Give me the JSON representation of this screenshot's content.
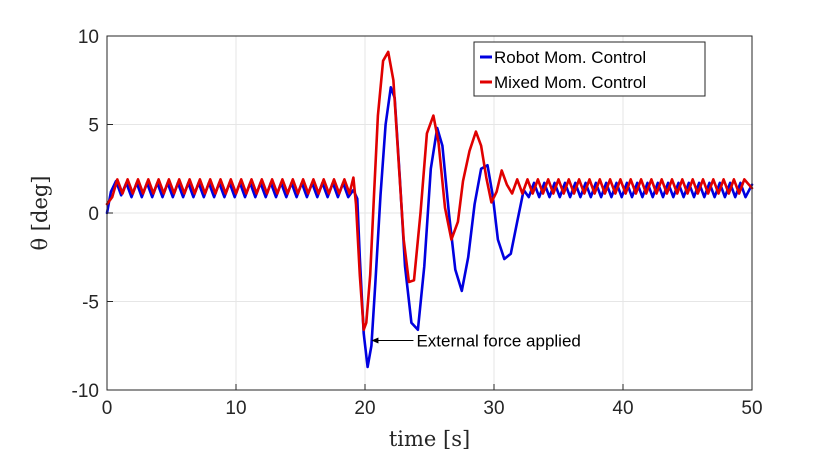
{
  "chart_data": {
    "type": "line",
    "xlabel": "time [s]",
    "ylabel": "θ [deg]",
    "xlim": [
      0,
      50
    ],
    "ylim": [
      -10,
      10
    ],
    "xticks": [
      "0",
      "10",
      "20",
      "30",
      "40",
      "50"
    ],
    "yticks": [
      "-10",
      "-5",
      "0",
      "5",
      "10"
    ],
    "grid": true,
    "legend_position": "top-right",
    "series": [
      {
        "name": "Robot Mom. Control",
        "color": "#0000e0",
        "x": [
          0,
          0.3,
          0.7,
          1.1,
          1.5,
          1.9,
          2.3,
          2.7,
          3.1,
          3.5,
          3.9,
          4.3,
          4.7,
          5.1,
          5.5,
          5.9,
          6.3,
          6.7,
          7.1,
          7.5,
          7.9,
          8.3,
          8.7,
          9.1,
          9.5,
          9.9,
          10.3,
          10.7,
          11.1,
          11.5,
          11.9,
          12.3,
          12.7,
          13.1,
          13.5,
          13.9,
          14.3,
          14.7,
          15.1,
          15.5,
          15.9,
          16.3,
          16.7,
          17.1,
          17.5,
          17.9,
          18.3,
          18.7,
          19.1,
          19.4,
          19.6,
          19.9,
          20.2,
          20.5,
          20.8,
          21.2,
          21.6,
          22.0,
          22.3,
          22.7,
          23.1,
          23.6,
          24.1,
          24.6,
          25.1,
          25.6,
          26.0,
          26.5,
          27.0,
          27.5,
          28.0,
          28.5,
          29.0,
          29.5,
          29.9,
          30.3,
          30.8,
          31.3,
          31.8,
          32.3,
          32.7,
          33.1,
          33.5,
          33.9,
          34.3,
          34.7,
          35.1,
          35.5,
          35.9,
          36.3,
          36.7,
          37.1,
          37.5,
          37.9,
          38.3,
          38.7,
          39.1,
          39.5,
          39.9,
          40.3,
          40.7,
          41.1,
          41.5,
          41.9,
          42.3,
          42.7,
          43.1,
          43.5,
          43.9,
          44.3,
          44.7,
          45.1,
          45.5,
          45.9,
          46.3,
          46.7,
          47.1,
          47.5,
          47.9,
          48.3,
          48.7,
          49.1,
          49.5,
          50.0
        ],
        "y": [
          0,
          1.2,
          1.8,
          1.0,
          1.7,
          0.9,
          1.7,
          0.9,
          1.7,
          0.9,
          1.7,
          0.9,
          1.7,
          0.9,
          1.7,
          0.9,
          1.7,
          0.9,
          1.7,
          0.9,
          1.7,
          0.9,
          1.7,
          0.9,
          1.7,
          0.9,
          1.7,
          0.9,
          1.7,
          0.9,
          1.7,
          0.9,
          1.7,
          0.9,
          1.7,
          0.9,
          1.7,
          0.9,
          1.7,
          0.9,
          1.7,
          0.9,
          1.7,
          0.9,
          1.7,
          0.9,
          1.7,
          0.9,
          1.3,
          0.8,
          -2.5,
          -6.8,
          -8.7,
          -7.5,
          -4.0,
          1.0,
          5.0,
          7.1,
          6.5,
          2.0,
          -3.0,
          -6.2,
          -6.6,
          -3.0,
          2.5,
          4.8,
          3.8,
          0.0,
          -3.2,
          -4.4,
          -2.5,
          0.5,
          2.5,
          2.7,
          1.0,
          -1.5,
          -2.6,
          -2.3,
          -0.5,
          1.3,
          0.9,
          1.7,
          0.9,
          1.7,
          0.9,
          1.7,
          0.9,
          1.7,
          0.9,
          1.7,
          0.9,
          1.7,
          0.9,
          1.7,
          0.9,
          1.7,
          0.9,
          1.7,
          0.9,
          1.7,
          0.9,
          1.7,
          0.9,
          1.7,
          0.9,
          1.7,
          0.9,
          1.7,
          0.9,
          1.7,
          0.9,
          1.7,
          0.9,
          1.7,
          0.9,
          1.7,
          0.9,
          1.7,
          0.9,
          1.7,
          0.9,
          1.7,
          0.9,
          1.6
        ]
      },
      {
        "name": "Mixed Mom. Control",
        "color": "#e00000",
        "x": [
          0,
          0.4,
          0.8,
          1.2,
          1.6,
          2.0,
          2.4,
          2.8,
          3.2,
          3.6,
          4.0,
          4.4,
          4.8,
          5.2,
          5.6,
          6.0,
          6.4,
          6.8,
          7.2,
          7.6,
          8.0,
          8.4,
          8.8,
          9.2,
          9.6,
          10.0,
          10.4,
          10.8,
          11.2,
          11.6,
          12.0,
          12.4,
          12.8,
          13.2,
          13.6,
          14.0,
          14.4,
          14.8,
          15.2,
          15.6,
          16.0,
          16.4,
          16.8,
          17.2,
          17.6,
          18.0,
          18.4,
          18.8,
          19.1,
          19.3,
          19.6,
          19.9,
          20.1,
          20.4,
          20.7,
          21.0,
          21.4,
          21.8,
          22.2,
          22.6,
          23.0,
          23.4,
          23.8,
          24.3,
          24.8,
          25.3,
          25.7,
          26.2,
          26.7,
          27.2,
          27.6,
          28.1,
          28.6,
          29.0,
          29.4,
          29.8,
          30.2,
          30.6,
          31.0,
          31.4,
          31.8,
          32.2,
          32.6,
          33.0,
          33.4,
          33.8,
          34.2,
          34.6,
          35.0,
          35.4,
          35.8,
          36.2,
          36.6,
          37.0,
          37.4,
          37.8,
          38.2,
          38.6,
          39.0,
          39.4,
          39.8,
          40.2,
          40.6,
          41.0,
          41.4,
          41.8,
          42.2,
          42.6,
          43.0,
          43.4,
          43.8,
          44.2,
          44.6,
          45.0,
          45.4,
          45.8,
          46.2,
          46.6,
          47.0,
          47.4,
          47.8,
          48.2,
          48.6,
          49.0,
          49.4,
          50.0
        ],
        "y": [
          0.5,
          0.9,
          1.9,
          1.1,
          1.9,
          1.1,
          1.9,
          1.1,
          1.9,
          1.1,
          1.9,
          1.1,
          1.9,
          1.1,
          1.9,
          1.1,
          1.9,
          1.1,
          1.9,
          1.1,
          1.9,
          1.1,
          1.9,
          1.1,
          1.9,
          1.1,
          1.9,
          1.1,
          1.9,
          1.1,
          1.9,
          1.1,
          1.9,
          1.1,
          1.9,
          1.1,
          1.9,
          1.1,
          1.9,
          1.1,
          1.9,
          1.1,
          1.9,
          1.1,
          1.9,
          1.1,
          1.9,
          1.1,
          2.0,
          0.5,
          -3.5,
          -6.6,
          -6.2,
          -3.5,
          1.0,
          5.5,
          8.6,
          9.1,
          7.5,
          3.0,
          -1.5,
          -3.9,
          -3.8,
          0.0,
          4.5,
          5.5,
          4.0,
          0.3,
          -1.5,
          -0.5,
          1.8,
          3.5,
          4.6,
          3.8,
          2.0,
          0.6,
          1.2,
          2.4,
          1.6,
          1.1,
          1.9,
          1.1,
          1.9,
          1.1,
          1.9,
          1.1,
          1.9,
          1.1,
          1.9,
          1.1,
          1.9,
          1.1,
          1.9,
          1.1,
          1.9,
          1.1,
          1.9,
          1.1,
          1.9,
          1.1,
          1.9,
          1.1,
          1.9,
          1.1,
          1.9,
          1.1,
          1.9,
          1.1,
          1.9,
          1.1,
          1.9,
          1.1,
          1.9,
          1.1,
          1.9,
          1.1,
          1.9,
          1.1,
          1.9,
          1.1,
          1.9,
          1.1,
          1.9,
          1.1,
          1.9,
          1.4
        ]
      }
    ],
    "annotations": [
      {
        "text": "External force applied",
        "point": [
          20.5,
          -7.2
        ]
      }
    ]
  }
}
